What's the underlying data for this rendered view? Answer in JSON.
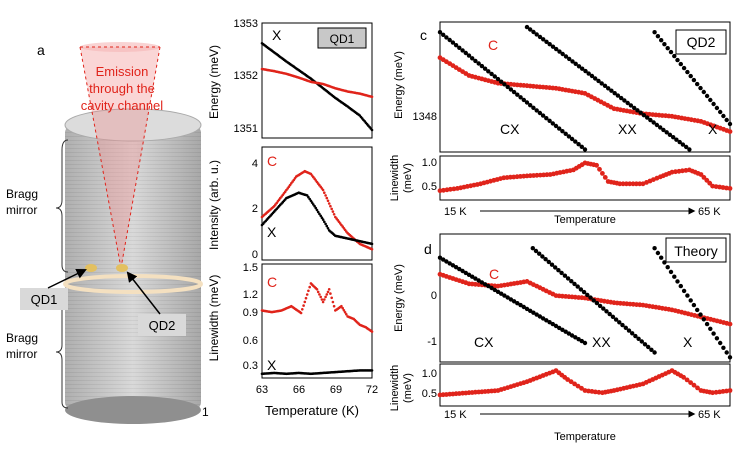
{
  "panel_letters": {
    "a": "a",
    "c": "c",
    "d": "d",
    "b_partial": "1"
  },
  "panel_a": {
    "emission_line1": "Emission",
    "emission_line2": "through the",
    "emission_line3": "cavity channel",
    "bragg_top_1": "Bragg",
    "bragg_top_2": "mirror",
    "bragg_bot_1": "Bragg",
    "bragg_bot_2": "mirror",
    "qd1": "QD1",
    "qd2": "QD2"
  },
  "colors": {
    "accent": "#e0241b",
    "tag_bg": "#d9d9d9",
    "pillar": "#c9c9c9"
  },
  "chart_data": [
    {
      "type": "line",
      "tag": "QD1",
      "ylabel": "Energy (meV)",
      "ylim": [
        1350.85,
        1353
      ],
      "xlim": [
        63,
        72
      ],
      "yticks": [
        "1353",
        "1352",
        "1351"
      ],
      "series": [
        {
          "name": "X",
          "x": [
            63,
            64,
            65,
            66,
            67,
            68,
            69,
            70,
            71,
            72
          ],
          "y": [
            1352.62,
            1352.45,
            1352.28,
            1352.12,
            1351.96,
            1351.78,
            1351.6,
            1351.44,
            1351.27,
            1351.0
          ]
        },
        {
          "name": "C",
          "x": [
            63,
            64,
            65,
            66,
            67,
            68,
            69,
            70,
            71,
            72
          ],
          "y": [
            1352.14,
            1352.1,
            1352.05,
            1351.98,
            1351.9,
            1351.86,
            1351.78,
            1351.72,
            1351.68,
            1351.62
          ]
        }
      ]
    },
    {
      "type": "line",
      "ylabel": "Intensity (arb. u.)",
      "ylim": [
        0,
        4.2
      ],
      "xlim": [
        63,
        72
      ],
      "yticks": [
        "4",
        "2",
        "0"
      ],
      "series": [
        {
          "name": "C",
          "x": [
            63,
            64,
            65,
            65.8,
            66.5,
            67,
            67.5,
            68,
            68.5,
            69,
            70,
            71,
            72
          ],
          "y": [
            1.6,
            2.0,
            2.6,
            3.1,
            3.3,
            3.2,
            2.9,
            2.6,
            2.1,
            1.6,
            1.0,
            0.6,
            0.4
          ]
        },
        {
          "name": "X",
          "x": [
            63,
            64,
            65,
            66,
            66.7,
            67.3,
            68,
            68.5,
            69,
            70,
            71,
            72
          ],
          "y": [
            1.3,
            1.8,
            2.3,
            2.5,
            2.4,
            2.0,
            1.5,
            1.1,
            0.9,
            0.8,
            0.7,
            0.6
          ]
        }
      ]
    },
    {
      "type": "line",
      "ylabel": "Linewidth (meV)",
      "xlabel": "Temperature (K)",
      "ylim": [
        0.15,
        1.5
      ],
      "xlim": [
        63,
        72
      ],
      "yticks": [
        "1.5",
        "1.2",
        "0.9",
        "0.6",
        "0.3"
      ],
      "xticks": [
        "63",
        "66",
        "69",
        "72"
      ],
      "series": [
        {
          "name": "C",
          "x": [
            63,
            63.8,
            64.6,
            65.4,
            66.2,
            67,
            67.5,
            68,
            68.5,
            69,
            69.5,
            70,
            70.5,
            71,
            71.5,
            72
          ],
          "y": [
            0.95,
            0.93,
            0.95,
            1.0,
            0.92,
            1.27,
            1.2,
            1.05,
            1.2,
            0.95,
            1.0,
            0.88,
            0.85,
            0.78,
            0.75,
            0.7
          ]
        },
        {
          "name": "X",
          "x": [
            63,
            64,
            65,
            66,
            67,
            68,
            69,
            70,
            71,
            72
          ],
          "y": [
            0.2,
            0.21,
            0.2,
            0.21,
            0.2,
            0.21,
            0.22,
            0.23,
            0.24,
            0.24
          ]
        }
      ]
    },
    {
      "type": "line",
      "tag": "QD2",
      "ylabel": "Energy (meV)",
      "yticks": [
        "1348"
      ],
      "series": [
        {
          "name": "C",
          "x": [
            15,
            20,
            25,
            30,
            35,
            40,
            45,
            50,
            55,
            60,
            65
          ],
          "y": [
            1350.2,
            1349.5,
            1349.2,
            1349.1,
            1349.0,
            1348.8,
            1348.2,
            1348.0,
            1347.9,
            1347.7,
            1347.3
          ]
        },
        {
          "name": "CX",
          "x": [
            15,
            40
          ],
          "y": [
            1351.2,
            1346.6
          ]
        },
        {
          "name": "XX",
          "x": [
            30,
            58
          ],
          "y": [
            1351.4,
            1346.6
          ]
        },
        {
          "name": "X",
          "x": [
            52,
            65
          ],
          "y": [
            1351.2,
            1347.6
          ]
        }
      ]
    },
    {
      "type": "line",
      "ylabel": "Linewidth (meV)",
      "xlabel": "Temperature",
      "xlim_labels": [
        "15 K",
        "65 K"
      ],
      "yticks": [
        "1.0",
        "0.5"
      ],
      "series": [
        {
          "name": "C",
          "x": [
            15,
            18,
            22,
            26,
            30,
            34,
            38,
            40,
            42,
            44,
            46,
            50,
            53,
            55,
            58,
            60,
            62,
            65
          ],
          "y": [
            0.4,
            0.45,
            0.55,
            0.68,
            0.72,
            0.75,
            0.85,
            1.0,
            0.95,
            0.6,
            0.55,
            0.55,
            0.7,
            0.8,
            0.85,
            0.75,
            0.5,
            0.45
          ]
        }
      ]
    },
    {
      "type": "line",
      "tag": "Theory",
      "ylabel": "Energy (meV)",
      "ylim": [
        -1.3,
        1.3
      ],
      "yticks": [
        "0",
        "-1"
      ],
      "series": [
        {
          "name": "C",
          "x": [
            15,
            20,
            25,
            30,
            35,
            40,
            45,
            50,
            55,
            60,
            65
          ],
          "y": [
            0.45,
            0.25,
            0.2,
            0.3,
            0.0,
            -0.05,
            -0.15,
            -0.2,
            -0.3,
            -0.45,
            -0.6
          ]
        },
        {
          "name": "CX",
          "x": [
            15,
            40
          ],
          "y": [
            0.8,
            -1.0
          ]
        },
        {
          "name": "XX",
          "x": [
            31,
            52
          ],
          "y": [
            1.0,
            -1.2
          ]
        },
        {
          "name": "X",
          "x": [
            52,
            65
          ],
          "y": [
            1.0,
            -1.3
          ]
        }
      ]
    },
    {
      "type": "line",
      "ylabel": "Linewidth (meV)",
      "xlabel": "Temperature",
      "xlim_labels": [
        "15 K",
        "65 K"
      ],
      "yticks": [
        "1.0",
        "0.5"
      ],
      "series": [
        {
          "name": "C",
          "x": [
            15,
            20,
            25,
            30,
            35,
            37,
            40,
            43,
            45,
            50,
            55,
            57,
            60,
            62,
            65
          ],
          "y": [
            0.45,
            0.5,
            0.55,
            0.75,
            1.0,
            0.8,
            0.55,
            0.5,
            0.55,
            0.7,
            1.0,
            0.85,
            0.55,
            0.5,
            0.55
          ]
        }
      ]
    }
  ],
  "labels": {
    "b1_tag": "QD1",
    "b1_x": "X",
    "b2_c": "C",
    "b2_x": "X",
    "b3_c": "C",
    "b3_x": "X",
    "c_tag": "QD2",
    "c_c": "C",
    "c_cx": "CX",
    "c_xx": "XX",
    "c_x": "X",
    "d_tag": "Theory",
    "d_c": "C",
    "d_cx": "CX",
    "d_xx": "XX",
    "d_x": "X",
    "c_ylabel": "Energy (meV)",
    "c_lw_ylabel_1": "Linewidth",
    "c_lw_ylabel_2": "(meV)",
    "d_ylabel": "Energy (meV)",
    "d_lw_ylabel_1": "Linewidth",
    "d_lw_ylabel_2": "(meV)",
    "b1_ylabel": "Energy (meV)",
    "b2_ylabel": "Intensity (arb. u.)",
    "b3_ylabel": "Linewidth (meV)",
    "b_xlabel": "Temperature (K)",
    "temp_label": "Temperature",
    "t_start": "15 K",
    "t_end": "65 K"
  }
}
